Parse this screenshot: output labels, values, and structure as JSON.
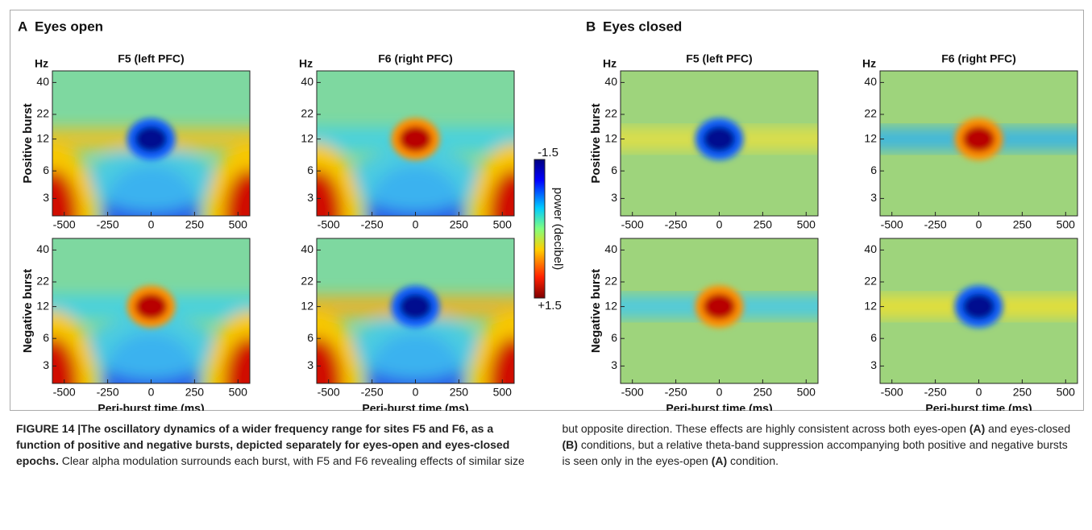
{
  "panels": [
    {
      "label": "A",
      "title": "Eyes open",
      "plots": [
        {
          "title": "F5 (left PFC)"
        },
        {
          "title": "F6 (right PFC)"
        }
      ]
    },
    {
      "label": "B",
      "title": "Eyes closed",
      "plots": [
        {
          "title": "F5 (left PFC)"
        },
        {
          "title": "F6 (right PFC)"
        }
      ]
    }
  ],
  "rows": [
    "Positive burst",
    "Negative burst"
  ],
  "y_unit": "Hz",
  "yticks": [
    "40",
    "22",
    "12",
    "6",
    "3"
  ],
  "xticks": [
    "-500",
    "-250",
    "0",
    "250",
    "500"
  ],
  "xlabel": "Peri-burst time (ms)",
  "colorbar": {
    "label": "power (decibel)",
    "min": "-1.5",
    "max": "+1.5"
  },
  "caption": [
    {
      "text": "FIGURE 14 |The oscillatory dynamics of a wider frequency range for sites F5 and F6, as a function of positive and negative bursts, depicted separately for eyes-open and eyes-closed epochs.",
      "bold": true
    },
    {
      "text": " Clear alpha modulation surrounds each burst, with F5 and F6 revealing effects of similar size but opposite direction. These effects are highly consistent across both eyes-open ",
      "bold": false
    },
    {
      "text": "(A)",
      "bold": true
    },
    {
      "text": " and eyes-closed ",
      "bold": false
    },
    {
      "text": "(B)",
      "bold": true
    },
    {
      "text": " conditions, but a relative theta-band suppression accompanying both positive and negative bursts is seen only in the eyes-open ",
      "bold": false
    },
    {
      "text": "(A)",
      "bold": true
    },
    {
      "text": " condition.",
      "bold": false
    }
  ]
}
